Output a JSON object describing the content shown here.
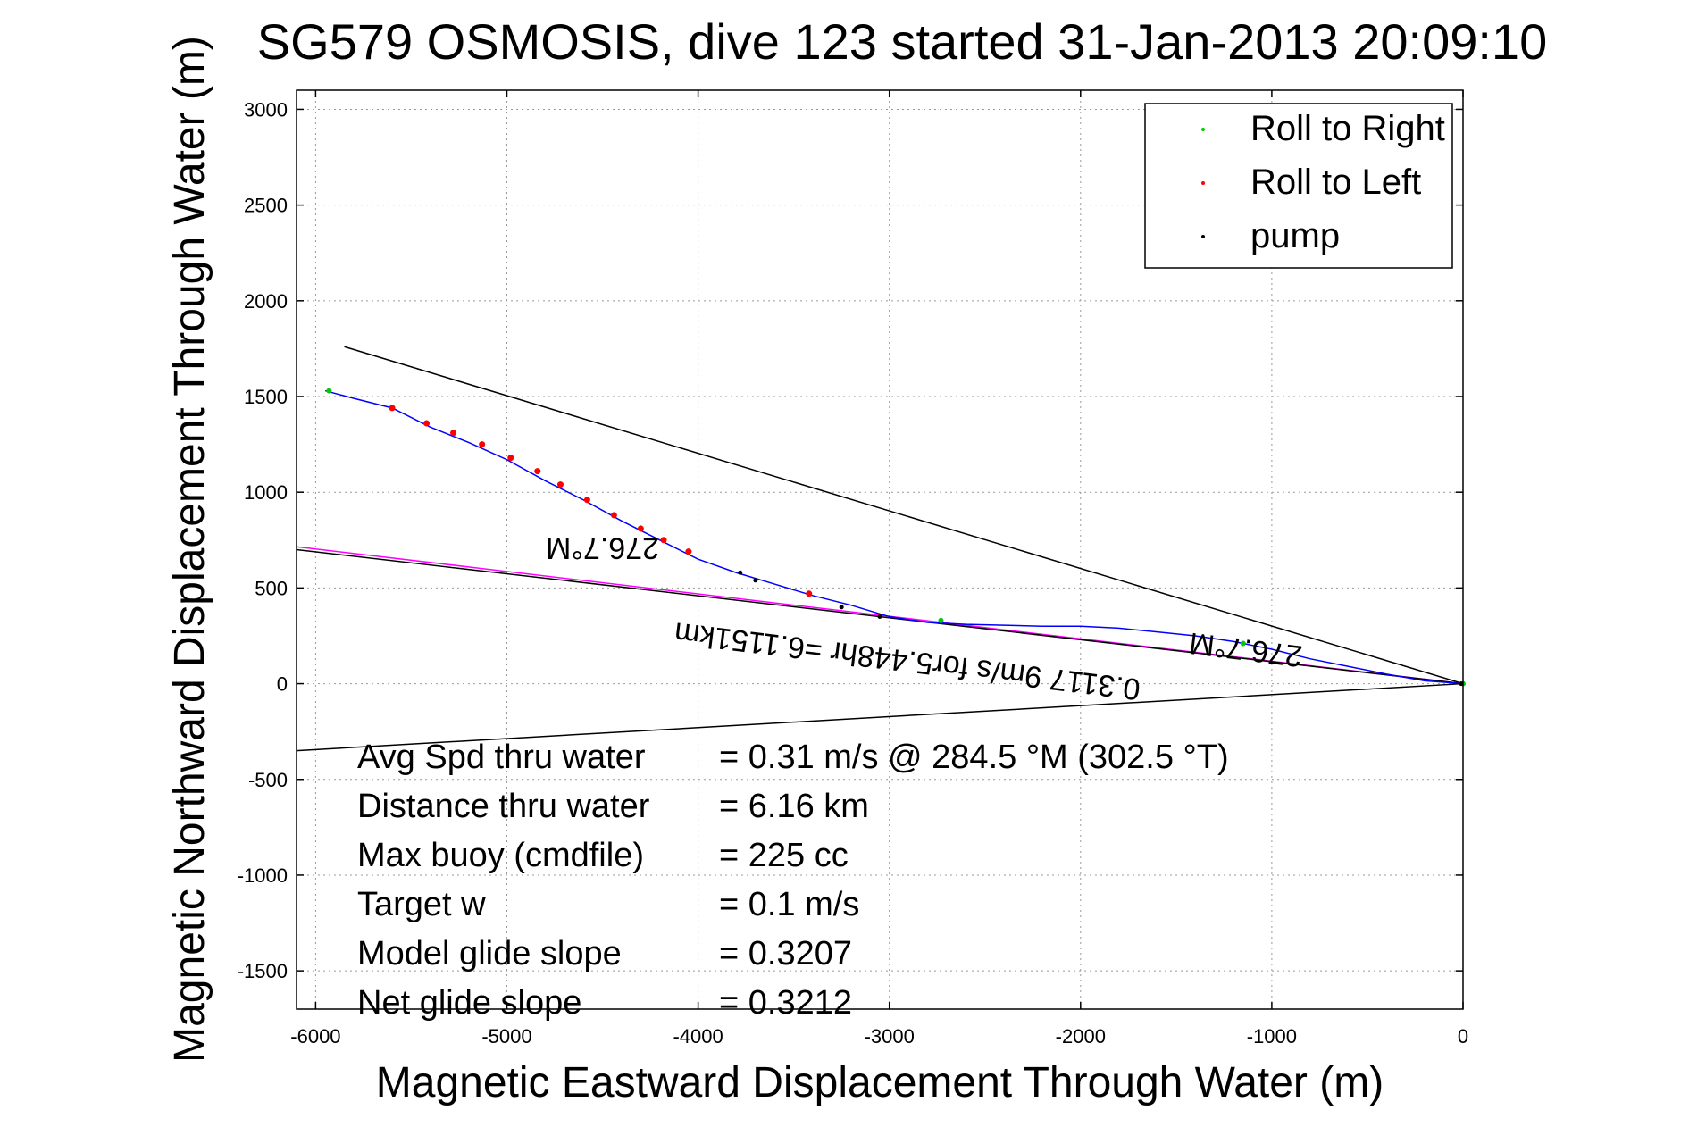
{
  "chart_data": {
    "type": "line",
    "title": "SG579 OSMOSIS, dive 123 started 31-Jan-2013 20:09:10",
    "xlabel": "Magnetic Eastward Displacement Through Water (m)",
    "ylabel": "Magnetic Northward Displacement Through Water (m)",
    "xlim": [
      -6100,
      0
    ],
    "ylim": [
      -1700,
      3100
    ],
    "xticks": [
      -6000,
      -5000,
      -4000,
      -3000,
      -2000,
      -1000,
      0
    ],
    "yticks": [
      -1500,
      -1000,
      -500,
      0,
      500,
      1000,
      1500,
      2000,
      2500,
      3000
    ],
    "xtick_labels": [
      "-6000",
      "-5000",
      "-4000",
      "-3000",
      "-2000",
      "-1000",
      "0"
    ],
    "ytick_labels": [
      "-1500",
      "-1000",
      "-500",
      "0",
      "500",
      "1000",
      "1500",
      "2000",
      "2500",
      "3000"
    ],
    "grid": true,
    "legend_position": "top-right",
    "legend": [
      {
        "label": "Roll to Right",
        "color": "#00cc00"
      },
      {
        "label": "Roll to Left",
        "color": "#ff0000"
      },
      {
        "label": "pump",
        "color": "#000000"
      }
    ],
    "track": {
      "color": "#0000ff",
      "x": [
        -5950,
        -5800,
        -5600,
        -5400,
        -5200,
        -5000,
        -4800,
        -4600,
        -4400,
        -4200,
        -4000,
        -3800,
        -3600,
        -3400,
        -3200,
        -3000,
        -2800,
        -2600,
        -2400,
        -2200,
        -2000,
        -1800,
        -1600,
        -1400,
        -1200,
        -1000,
        -800,
        -600,
        -400,
        -200,
        0
      ],
      "y": [
        1530,
        1490,
        1440,
        1340,
        1260,
        1170,
        1060,
        960,
        850,
        750,
        650,
        580,
        520,
        460,
        410,
        350,
        320,
        310,
        305,
        300,
        300,
        290,
        270,
        250,
        220,
        180,
        130,
        90,
        50,
        15,
        0
      ]
    },
    "roll_left_x": [
      -5600,
      -5420,
      -5280,
      -5130,
      -4980,
      -4840,
      -4720,
      -4580,
      -4440,
      -4300,
      -4180,
      -4050,
      -3420
    ],
    "roll_left_y": [
      1440,
      1360,
      1310,
      1250,
      1180,
      1110,
      1040,
      960,
      880,
      810,
      750,
      690,
      470
    ],
    "roll_right_x": [
      -5930,
      -2730,
      -1150,
      0
    ],
    "roll_right_y": [
      1530,
      330,
      210,
      0
    ],
    "pump_x": [
      -3780,
      -3700,
      -3250,
      -3050,
      -10
    ],
    "pump_y": [
      580,
      540,
      400,
      350,
      0
    ],
    "lines": [
      {
        "name": "upper",
        "color": "#000000",
        "x": [
          -5850,
          0
        ],
        "y": [
          1760,
          0
        ]
      },
      {
        "name": "lower",
        "color": "#000000",
        "x": [
          -6100,
          0
        ],
        "y": [
          -350,
          0
        ]
      },
      {
        "name": "magnetic-heading",
        "color": "#ff00ff",
        "x": [
          -6100,
          0
        ],
        "y": [
          715,
          0
        ]
      },
      {
        "name": "heading-black",
        "color": "#000000",
        "x": [
          -6100,
          0
        ],
        "y": [
          700,
          0
        ]
      }
    ],
    "annotations": [
      {
        "text": "276.7°M",
        "x": -4500,
        "y": 760,
        "angle": 180
      },
      {
        "text": "276.7°M",
        "x": -1130,
        "y": 230,
        "angle": 187
      },
      {
        "text": "0.3117 9m/s for5.448hr =6.1151km",
        "x": -2900,
        "y": 170,
        "angle": 187
      }
    ],
    "stats": [
      {
        "label": "Avg Spd thru water",
        "value": "=  0.31 m/s @ 284.5 °M (302.5 °T)"
      },
      {
        "label": "Distance thru water",
        "value": "=  6.16 km"
      },
      {
        "label": "Max buoy (cmdfile)",
        "value": "= 225 cc"
      },
      {
        "label": "Target w",
        "value": "= 0.1 m/s"
      },
      {
        "label": "Model glide slope",
        "value": "= 0.3207"
      },
      {
        "label": "Net glide slope",
        "value": "= 0.3212"
      }
    ]
  }
}
